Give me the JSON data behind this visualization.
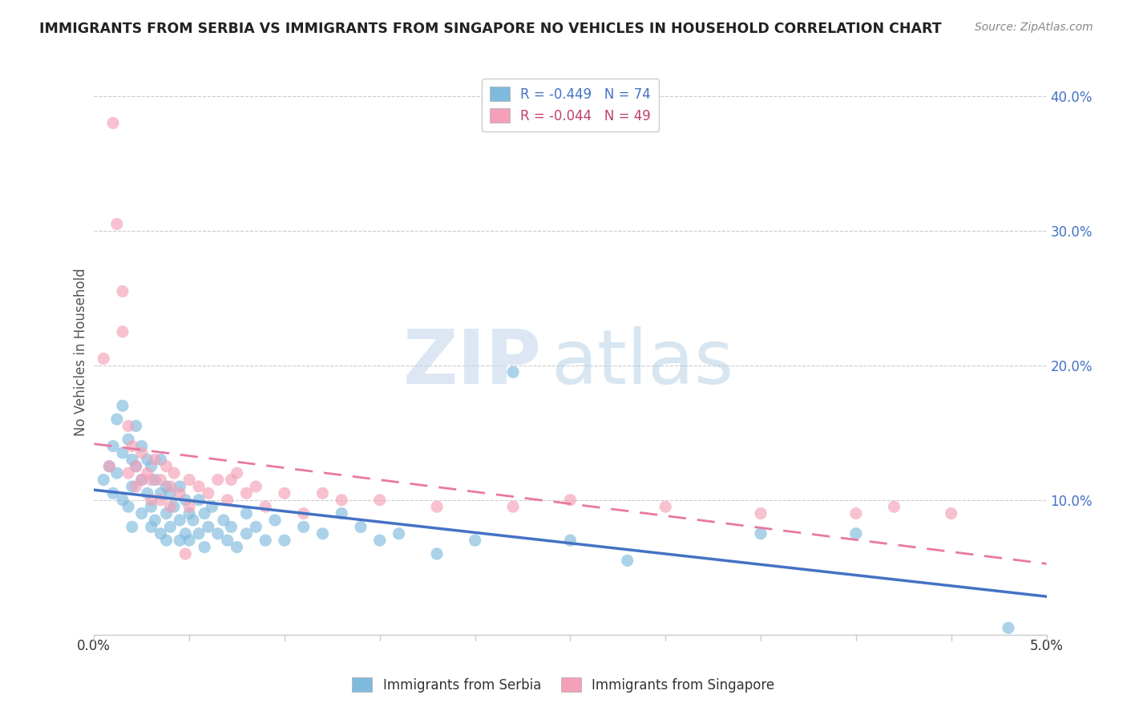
{
  "title": "IMMIGRANTS FROM SERBIA VS IMMIGRANTS FROM SINGAPORE NO VEHICLES IN HOUSEHOLD CORRELATION CHART",
  "source": "Source: ZipAtlas.com",
  "ylabel": "No Vehicles in Household",
  "xlim": [
    0.0,
    5.0
  ],
  "ylim": [
    0.0,
    42.0
  ],
  "yticks": [
    0.0,
    10.0,
    20.0,
    30.0,
    40.0
  ],
  "ytick_labels": [
    "",
    "10.0%",
    "20.0%",
    "30.0%",
    "40.0%"
  ],
  "serbia_color": "#7fbadd",
  "singapore_color": "#f4a0b8",
  "serbia_line_color": "#4472c4",
  "singapore_line_color": "#e879a0",
  "serbia_R": -0.449,
  "serbia_N": 74,
  "singapore_R": -0.044,
  "singapore_N": 49,
  "serbia_points": [
    [
      0.05,
      11.5
    ],
    [
      0.08,
      12.5
    ],
    [
      0.1,
      14.0
    ],
    [
      0.1,
      10.5
    ],
    [
      0.12,
      16.0
    ],
    [
      0.12,
      12.0
    ],
    [
      0.15,
      13.5
    ],
    [
      0.15,
      10.0
    ],
    [
      0.15,
      17.0
    ],
    [
      0.18,
      14.5
    ],
    [
      0.18,
      9.5
    ],
    [
      0.2,
      13.0
    ],
    [
      0.2,
      11.0
    ],
    [
      0.2,
      8.0
    ],
    [
      0.22,
      15.5
    ],
    [
      0.22,
      12.5
    ],
    [
      0.25,
      14.0
    ],
    [
      0.25,
      11.5
    ],
    [
      0.25,
      9.0
    ],
    [
      0.28,
      13.0
    ],
    [
      0.28,
      10.5
    ],
    [
      0.3,
      12.5
    ],
    [
      0.3,
      9.5
    ],
    [
      0.3,
      8.0
    ],
    [
      0.32,
      11.5
    ],
    [
      0.32,
      8.5
    ],
    [
      0.35,
      13.0
    ],
    [
      0.35,
      10.5
    ],
    [
      0.35,
      7.5
    ],
    [
      0.38,
      11.0
    ],
    [
      0.38,
      9.0
    ],
    [
      0.38,
      7.0
    ],
    [
      0.4,
      10.5
    ],
    [
      0.4,
      8.0
    ],
    [
      0.42,
      9.5
    ],
    [
      0.45,
      11.0
    ],
    [
      0.45,
      8.5
    ],
    [
      0.45,
      7.0
    ],
    [
      0.48,
      10.0
    ],
    [
      0.48,
      7.5
    ],
    [
      0.5,
      9.0
    ],
    [
      0.5,
      7.0
    ],
    [
      0.52,
      8.5
    ],
    [
      0.55,
      10.0
    ],
    [
      0.55,
      7.5
    ],
    [
      0.58,
      9.0
    ],
    [
      0.58,
      6.5
    ],
    [
      0.6,
      8.0
    ],
    [
      0.62,
      9.5
    ],
    [
      0.65,
      7.5
    ],
    [
      0.68,
      8.5
    ],
    [
      0.7,
      7.0
    ],
    [
      0.72,
      8.0
    ],
    [
      0.75,
      6.5
    ],
    [
      0.8,
      9.0
    ],
    [
      0.8,
      7.5
    ],
    [
      0.85,
      8.0
    ],
    [
      0.9,
      7.0
    ],
    [
      0.95,
      8.5
    ],
    [
      1.0,
      7.0
    ],
    [
      1.1,
      8.0
    ],
    [
      1.2,
      7.5
    ],
    [
      1.3,
      9.0
    ],
    [
      1.4,
      8.0
    ],
    [
      1.5,
      7.0
    ],
    [
      1.6,
      7.5
    ],
    [
      1.8,
      6.0
    ],
    [
      2.0,
      7.0
    ],
    [
      2.2,
      19.5
    ],
    [
      2.5,
      7.0
    ],
    [
      2.8,
      5.5
    ],
    [
      3.5,
      7.5
    ],
    [
      4.0,
      7.5
    ],
    [
      4.8,
      0.5
    ]
  ],
  "singapore_points": [
    [
      0.05,
      20.5
    ],
    [
      0.08,
      12.5
    ],
    [
      0.1,
      38.0
    ],
    [
      0.12,
      30.5
    ],
    [
      0.15,
      25.5
    ],
    [
      0.15,
      22.5
    ],
    [
      0.18,
      15.5
    ],
    [
      0.18,
      12.0
    ],
    [
      0.2,
      14.0
    ],
    [
      0.22,
      12.5
    ],
    [
      0.22,
      11.0
    ],
    [
      0.25,
      13.5
    ],
    [
      0.25,
      11.5
    ],
    [
      0.28,
      12.0
    ],
    [
      0.3,
      11.5
    ],
    [
      0.3,
      10.0
    ],
    [
      0.32,
      13.0
    ],
    [
      0.35,
      11.5
    ],
    [
      0.35,
      10.0
    ],
    [
      0.38,
      12.5
    ],
    [
      0.4,
      11.0
    ],
    [
      0.4,
      9.5
    ],
    [
      0.42,
      12.0
    ],
    [
      0.45,
      10.5
    ],
    [
      0.48,
      6.0
    ],
    [
      0.5,
      11.5
    ],
    [
      0.5,
      9.5
    ],
    [
      0.55,
      11.0
    ],
    [
      0.6,
      10.5
    ],
    [
      0.65,
      11.5
    ],
    [
      0.7,
      10.0
    ],
    [
      0.72,
      11.5
    ],
    [
      0.75,
      12.0
    ],
    [
      0.8,
      10.5
    ],
    [
      0.85,
      11.0
    ],
    [
      0.9,
      9.5
    ],
    [
      1.0,
      10.5
    ],
    [
      1.1,
      9.0
    ],
    [
      1.2,
      10.5
    ],
    [
      1.3,
      10.0
    ],
    [
      1.5,
      10.0
    ],
    [
      1.8,
      9.5
    ],
    [
      2.2,
      9.5
    ],
    [
      2.5,
      10.0
    ],
    [
      3.0,
      9.5
    ],
    [
      3.5,
      9.0
    ],
    [
      4.0,
      9.0
    ],
    [
      4.2,
      9.5
    ],
    [
      4.5,
      9.0
    ]
  ]
}
